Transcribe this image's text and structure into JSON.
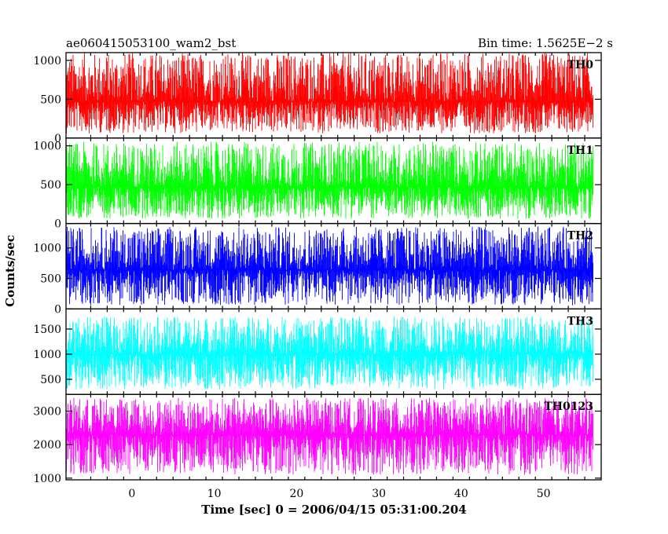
{
  "chart_data": {
    "type": "line",
    "title": "ae060415053100_wam2_bst",
    "subtitle": "Bin time: 1.5625E−2 s",
    "xlabel": "Time [sec] 0 = 2006/04/15 05:31:00.204",
    "ylabel": "Counts/sec",
    "xlim": [
      -8,
      57
    ],
    "x_data_range": [
      -8,
      56
    ],
    "x_ticks": [
      0,
      10,
      20,
      30,
      40,
      50
    ],
    "x_tick_labels": [
      "0",
      "10",
      "20",
      "30",
      "40",
      "50"
    ],
    "grid": false,
    "panels": [
      {
        "name": "TH0",
        "color": "#ff0000",
        "ylim": [
          0,
          1100
        ],
        "y_ticks": [
          0,
          500,
          1000
        ],
        "y_tick_labels": [
          "0",
          "500",
          "1000"
        ],
        "signal_mean": 470,
        "signal_low": 60,
        "signal_high": 1100
      },
      {
        "name": "TH1",
        "color": "#00ff00",
        "ylim": [
          0,
          1100
        ],
        "y_ticks": [
          0,
          500,
          1000
        ],
        "y_tick_labels": [
          "0",
          "500",
          "1000"
        ],
        "signal_mean": 470,
        "signal_low": 60,
        "signal_high": 1050
      },
      {
        "name": "TH2",
        "color": "#0000ff",
        "ylim": [
          0,
          1400
        ],
        "y_ticks": [
          0,
          500,
          1000
        ],
        "y_tick_labels": [
          "0",
          "500",
          "1000"
        ],
        "signal_mean": 640,
        "signal_low": 60,
        "signal_high": 1350
      },
      {
        "name": "TH3",
        "color": "#00ffff",
        "ylim": [
          200,
          1900
        ],
        "y_ticks": [
          500,
          1000,
          1500
        ],
        "y_tick_labels": [
          "500",
          "1000",
          "1500"
        ],
        "signal_mean": 1000,
        "signal_low": 300,
        "signal_high": 1750
      },
      {
        "name": "TH0123",
        "color": "#ff00ff",
        "ylim": [
          950,
          3500
        ],
        "y_ticks": [
          1000,
          2000,
          3000
        ],
        "y_tick_labels": [
          "1000",
          "2000",
          "3000"
        ],
        "signal_mean": 2300,
        "signal_low": 1100,
        "signal_high": 3400
      }
    ]
  }
}
